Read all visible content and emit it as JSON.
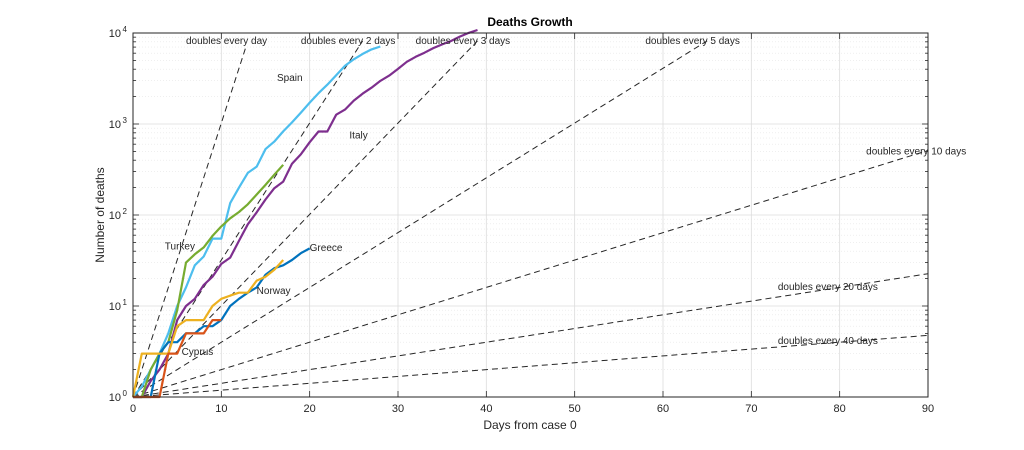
{
  "chart_data": {
    "type": "line",
    "title": "Deaths Growth",
    "xlabel": "Days from case 0",
    "ylabel": "Number of deaths",
    "xlim": [
      0,
      90
    ],
    "ylim": [
      1,
      10000
    ],
    "yscale": "log",
    "grid": true,
    "minor_grid": true,
    "x_ticks": [
      0,
      10,
      20,
      30,
      40,
      50,
      60,
      70,
      80,
      90
    ],
    "x_tick_labels": [
      "0",
      "10",
      "20",
      "30",
      "40",
      "50",
      "60",
      "70",
      "80",
      "90"
    ],
    "y_ticks": [
      1,
      10,
      100,
      1000,
      10000
    ],
    "y_tick_labels": [
      {
        "base": "10",
        "exp": "0"
      },
      {
        "base": "10",
        "exp": "1"
      },
      {
        "base": "10",
        "exp": "2"
      },
      {
        "base": "10",
        "exp": "3"
      },
      {
        "base": "10",
        "exp": "4"
      }
    ],
    "reference_lines": [
      {
        "label": "doubles every day",
        "doubling_days": 1,
        "x_end": 12.8,
        "label_x": 6,
        "label_y": 7600,
        "anchor": "start"
      },
      {
        "label": "doubles every 2 days",
        "doubling_days": 2,
        "x_end": 26,
        "label_x": 19,
        "label_y": 7600,
        "anchor": "start"
      },
      {
        "label": "doubles every 3 days",
        "doubling_days": 3,
        "x_end": 39,
        "label_x": 32,
        "label_y": 7600,
        "anchor": "start"
      },
      {
        "label": "doubles every 5 days",
        "doubling_days": 5,
        "x_end": 65,
        "label_x": 58,
        "label_y": 7600,
        "anchor": "start"
      },
      {
        "label": "doubles every 10 days",
        "doubling_days": 10,
        "x_end": 90,
        "label_x": 83,
        "label_y": 460,
        "anchor": "start"
      },
      {
        "label": "doubles every 20 days",
        "doubling_days": 20,
        "x_end": 90,
        "label_x": 73,
        "label_y": 15,
        "anchor": "start"
      },
      {
        "label": "doubles every 40 days",
        "doubling_days": 40,
        "x_end": 90,
        "label_x": 73,
        "label_y": 3.8,
        "anchor": "start"
      }
    ],
    "series": [
      {
        "name": "Spain",
        "color": "#4dbeee",
        "x": [
          0,
          1,
          2,
          3,
          4,
          5,
          6,
          7,
          8,
          9,
          10,
          11,
          12,
          13,
          14,
          15,
          16,
          17,
          18,
          19,
          20,
          21,
          22,
          23,
          24,
          25,
          26,
          27,
          28
        ],
        "y": [
          1,
          1.3,
          2,
          3,
          5,
          10,
          16,
          28,
          35,
          55,
          55,
          135,
          200,
          290,
          340,
          530,
          640,
          830,
          1040,
          1330,
          1720,
          2180,
          2700,
          3440,
          4360,
          5140,
          5900,
          6600,
          7100
        ],
        "label_x": 16.3,
        "label_y": 2950,
        "anchor": "start"
      },
      {
        "name": "Italy",
        "color": "#7e2f8e",
        "x": [
          0,
          1,
          2,
          3,
          4,
          5,
          6,
          7,
          8,
          9,
          10,
          11,
          12,
          13,
          14,
          15,
          16,
          17,
          18,
          19,
          20,
          21,
          22,
          23,
          24,
          25,
          26,
          27,
          28,
          29,
          30,
          31,
          32,
          33,
          34,
          35,
          36,
          37,
          38,
          39
        ],
        "y": [
          1,
          1,
          1.5,
          2,
          3,
          7,
          10,
          12,
          17,
          21,
          29,
          34,
          52,
          79,
          107,
          148,
          197,
          233,
          366,
          463,
          631,
          827,
          827,
          1266,
          1441,
          1809,
          2158,
          2503,
          2978,
          3405,
          4032,
          4825,
          5476,
          6077,
          6820,
          7503,
          8165,
          9134,
          10023,
          10779
        ],
        "label_x": 24.5,
        "label_y": 690,
        "anchor": "start"
      },
      {
        "name": "Turkey",
        "color": "#77ac30",
        "x": [
          0,
          1,
          2,
          3,
          4,
          5,
          6,
          7,
          8,
          9,
          10,
          11,
          12,
          13,
          14,
          15,
          16,
          17
        ],
        "y": [
          1,
          1,
          2,
          3,
          4,
          9,
          30,
          37,
          44,
          59,
          75,
          92,
          108,
          131,
          168,
          214,
          277,
          356
        ],
        "label_x": 3.6,
        "label_y": 42,
        "anchor": "start"
      },
      {
        "name": "Greece",
        "color": "#0072bd",
        "x": [
          0,
          1,
          2,
          3,
          4,
          5,
          6,
          7,
          8,
          9,
          10,
          11,
          12,
          13,
          14,
          15,
          16,
          17,
          18,
          19,
          20
        ],
        "y": [
          1,
          1,
          1,
          3,
          4,
          4,
          5,
          5,
          6,
          6,
          7,
          10,
          12,
          14,
          16,
          22,
          26,
          28,
          32,
          38,
          43
        ],
        "label_x": 20,
        "label_y": 40,
        "anchor": "start"
      },
      {
        "name": "Norway",
        "color": "#edb120",
        "x": [
          0,
          1,
          2,
          3,
          4,
          5,
          6,
          7,
          8,
          9,
          10,
          11,
          12,
          13,
          14,
          15,
          16,
          17
        ],
        "y": [
          1,
          3,
          3,
          3,
          3,
          6,
          7,
          7,
          7,
          10,
          12,
          13,
          14,
          14,
          19,
          21,
          25,
          32
        ],
        "label_x": 14,
        "label_y": 13.5,
        "anchor": "start"
      },
      {
        "name": "Cyprus",
        "color": "#d95319",
        "x": [
          0,
          1,
          2,
          3,
          4,
          5,
          6,
          7,
          8,
          9,
          10
        ],
        "y": [
          1,
          1,
          1,
          1,
          3,
          3,
          5,
          5,
          5,
          7,
          7
        ],
        "label_x": 5.5,
        "label_y": 2.9,
        "anchor": "start"
      }
    ]
  }
}
